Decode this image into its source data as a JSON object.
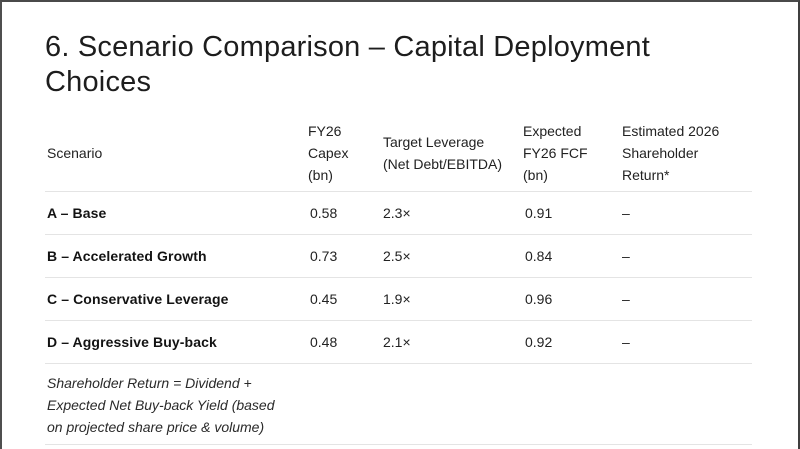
{
  "slide": {
    "title": "6. Scenario Comparison – Capital Deployment Choices"
  },
  "table": {
    "columns": [
      {
        "label": "Scenario"
      },
      {
        "label": "FY26 Capex (bn)"
      },
      {
        "label": "Target Leverage (Net Debt/EBITDA)"
      },
      {
        "label": "Expected FY26 FCF (bn)"
      },
      {
        "label": "Estimated 2026 Shareholder Return*"
      }
    ],
    "rows": [
      {
        "scenario": "A – Base",
        "capex": "0.58",
        "leverage": "2.3×",
        "fcf": "0.91",
        "return": "–"
      },
      {
        "scenario": "B – Accelerated Growth",
        "capex": "0.73",
        "leverage": "2.5×",
        "fcf": "0.84",
        "return": "–"
      },
      {
        "scenario": "C – Conservative Leverage",
        "capex": "0.45",
        "leverage": "1.9×",
        "fcf": "0.96",
        "return": "–"
      },
      {
        "scenario": "D – Aggressive Buy-back",
        "capex": "0.48",
        "leverage": "2.1×",
        "fcf": "0.92",
        "return": "–"
      }
    ],
    "footnote_lines": [
      "Shareholder Return = Dividend +",
      "Expected Net Buy-back Yield (based",
      "on projected share price & volume)"
    ]
  },
  "colors": {
    "background": "#ffffff",
    "frame_border": "#4a4a4a",
    "divider": "#e4e4e4",
    "title_text": "#1d1d1d",
    "body_text": "#222222"
  }
}
